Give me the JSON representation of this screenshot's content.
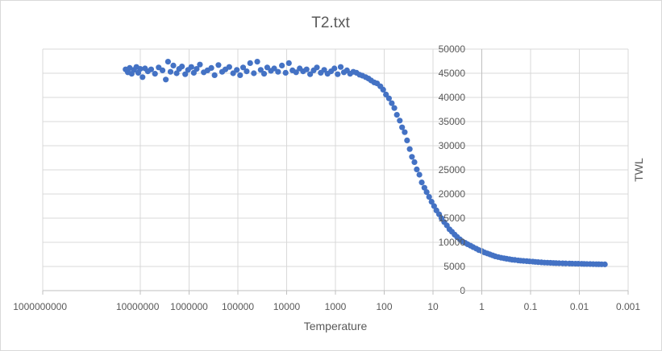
{
  "chart_data": {
    "type": "scatter",
    "title": "T2.txt",
    "xlabel": "Temperature",
    "ylabel": "TWL",
    "x_scale": "log",
    "x_reversed": true,
    "xlim": [
      1000000000,
      0.001
    ],
    "ylim": [
      0,
      50000
    ],
    "x_ticks": [
      1000000000,
      10000000,
      1000000,
      100000,
      10000,
      1000,
      100,
      10,
      1,
      0.1,
      0.01,
      0.001
    ],
    "x_tick_labels": [
      "1000000000",
      "10000000",
      "1000000",
      "100000",
      "10000",
      "1000",
      "100",
      "10",
      "1",
      "0.1",
      "0.01",
      "0.001"
    ],
    "y_ticks": [
      0,
      5000,
      10000,
      15000,
      20000,
      25000,
      30000,
      35000,
      40000,
      45000,
      50000
    ],
    "y_tick_labels": [
      "0",
      "5000",
      "10000",
      "15000",
      "20000",
      "25000",
      "30000",
      "35000",
      "40000",
      "45000",
      "50000"
    ],
    "grid": true,
    "y_axis_position": "right",
    "color": "#4472C4",
    "series": [
      {
        "points": [
          [
            20000000,
            45800
          ],
          [
            18000000,
            45200
          ],
          [
            16500000,
            46100
          ],
          [
            15000000,
            44900
          ],
          [
            13500000,
            45700
          ],
          [
            12000000,
            46300
          ],
          [
            11000000,
            45100
          ],
          [
            10000000,
            45900
          ],
          [
            9000000,
            44200
          ],
          [
            8000000,
            46000
          ],
          [
            7000000,
            45400
          ],
          [
            6000000,
            45800
          ],
          [
            5000000,
            44900
          ],
          [
            4200000,
            46200
          ],
          [
            3500000,
            45600
          ],
          [
            3000000,
            43700
          ],
          [
            2700000,
            47400
          ],
          [
            2400000,
            45300
          ],
          [
            2100000,
            46600
          ],
          [
            1800000,
            45000
          ],
          [
            1600000,
            45900
          ],
          [
            1400000,
            46400
          ],
          [
            1200000,
            44800
          ],
          [
            1050000,
            45700
          ],
          [
            900000,
            46300
          ],
          [
            800000,
            45100
          ],
          [
            700000,
            45900
          ],
          [
            600000,
            46800
          ],
          [
            500000,
            45200
          ],
          [
            420000,
            45600
          ],
          [
            350000,
            46100
          ],
          [
            300000,
            44600
          ],
          [
            250000,
            46700
          ],
          [
            210000,
            45300
          ],
          [
            180000,
            45800
          ],
          [
            150000,
            46300
          ],
          [
            125000,
            45000
          ],
          [
            105000,
            45700
          ],
          [
            90000,
            44600
          ],
          [
            78000,
            46200
          ],
          [
            66000,
            45400
          ],
          [
            56000,
            47100
          ],
          [
            47000,
            45000
          ],
          [
            40000,
            47400
          ],
          [
            34000,
            45700
          ],
          [
            29000,
            44900
          ],
          [
            25000,
            46200
          ],
          [
            21000,
            45500
          ],
          [
            18000,
            46000
          ],
          [
            15000,
            45300
          ],
          [
            12500,
            46600
          ],
          [
            10500,
            45100
          ],
          [
            9000,
            47100
          ],
          [
            7600,
            45600
          ],
          [
            6400,
            45200
          ],
          [
            5400,
            46000
          ],
          [
            4600,
            45400
          ],
          [
            3900,
            45800
          ],
          [
            3300,
            44800
          ],
          [
            2800,
            45600
          ],
          [
            2400,
            46200
          ],
          [
            2000,
            45100
          ],
          [
            1700,
            45700
          ],
          [
            1450,
            44900
          ],
          [
            1230,
            45400
          ],
          [
            1050,
            46000
          ],
          [
            900,
            44800
          ],
          [
            780,
            46300
          ],
          [
            670,
            45200
          ],
          [
            580,
            45600
          ],
          [
            500,
            44900
          ],
          [
            430,
            45300
          ],
          [
            370,
            45100
          ],
          [
            320,
            44700
          ],
          [
            280,
            44500
          ],
          [
            240,
            44200
          ],
          [
            210,
            43900
          ],
          [
            185,
            43500
          ],
          [
            160,
            43100
          ],
          [
            140,
            42900
          ],
          [
            120,
            42300
          ],
          [
            105,
            41600
          ],
          [
            92,
            40600
          ],
          [
            80,
            39800
          ],
          [
            70,
            38800
          ],
          [
            62,
            37800
          ],
          [
            55,
            36400
          ],
          [
            48,
            35200
          ],
          [
            43,
            33800
          ],
          [
            38,
            32800
          ],
          [
            34,
            31100
          ],
          [
            30,
            29300
          ],
          [
            27,
            27700
          ],
          [
            24,
            26600
          ],
          [
            21.5,
            25100
          ],
          [
            19,
            24000
          ],
          [
            17,
            22400
          ],
          [
            15,
            21300
          ],
          [
            13.5,
            20400
          ],
          [
            12,
            19400
          ],
          [
            10.7,
            18400
          ],
          [
            9.5,
            17500
          ],
          [
            8.5,
            16600
          ],
          [
            7.5,
            15800
          ],
          [
            6.7,
            15000
          ],
          [
            5.9,
            14200
          ],
          [
            5.2,
            13500
          ],
          [
            4.6,
            12700
          ],
          [
            4.1,
            12200
          ],
          [
            3.6,
            11600
          ],
          [
            3.2,
            11100
          ],
          [
            2.8,
            10600
          ],
          [
            2.5,
            10200
          ],
          [
            2.2,
            9900
          ],
          [
            1.95,
            9600
          ],
          [
            1.7,
            9300
          ],
          [
            1.5,
            9000
          ],
          [
            1.3,
            8700
          ],
          [
            1.15,
            8400
          ],
          [
            1.0,
            8200
          ],
          [
            0.88,
            7900
          ],
          [
            0.77,
            7700
          ],
          [
            0.68,
            7500
          ],
          [
            0.6,
            7300
          ],
          [
            0.53,
            7100
          ],
          [
            0.46,
            6950
          ],
          [
            0.4,
            6800
          ],
          [
            0.35,
            6700
          ],
          [
            0.31,
            6600
          ],
          [
            0.27,
            6500
          ],
          [
            0.24,
            6400
          ],
          [
            0.21,
            6350
          ],
          [
            0.18,
            6250
          ],
          [
            0.16,
            6200
          ],
          [
            0.14,
            6150
          ],
          [
            0.12,
            6100
          ],
          [
            0.105,
            6050
          ],
          [
            0.09,
            6000
          ],
          [
            0.08,
            5950
          ],
          [
            0.07,
            5900
          ],
          [
            0.06,
            5850
          ],
          [
            0.052,
            5800
          ],
          [
            0.045,
            5780
          ],
          [
            0.039,
            5750
          ],
          [
            0.034,
            5720
          ],
          [
            0.03,
            5700
          ],
          [
            0.026,
            5680
          ],
          [
            0.022,
            5650
          ],
          [
            0.019,
            5630
          ],
          [
            0.016,
            5610
          ],
          [
            0.014,
            5590
          ],
          [
            0.012,
            5570
          ],
          [
            0.0105,
            5560
          ],
          [
            0.009,
            5540
          ],
          [
            0.008,
            5520
          ],
          [
            0.007,
            5510
          ],
          [
            0.006,
            5500
          ],
          [
            0.0052,
            5480
          ],
          [
            0.0045,
            5470
          ],
          [
            0.004,
            5460
          ],
          [
            0.0035,
            5450
          ],
          [
            0.003,
            5440
          ]
        ]
      }
    ]
  }
}
